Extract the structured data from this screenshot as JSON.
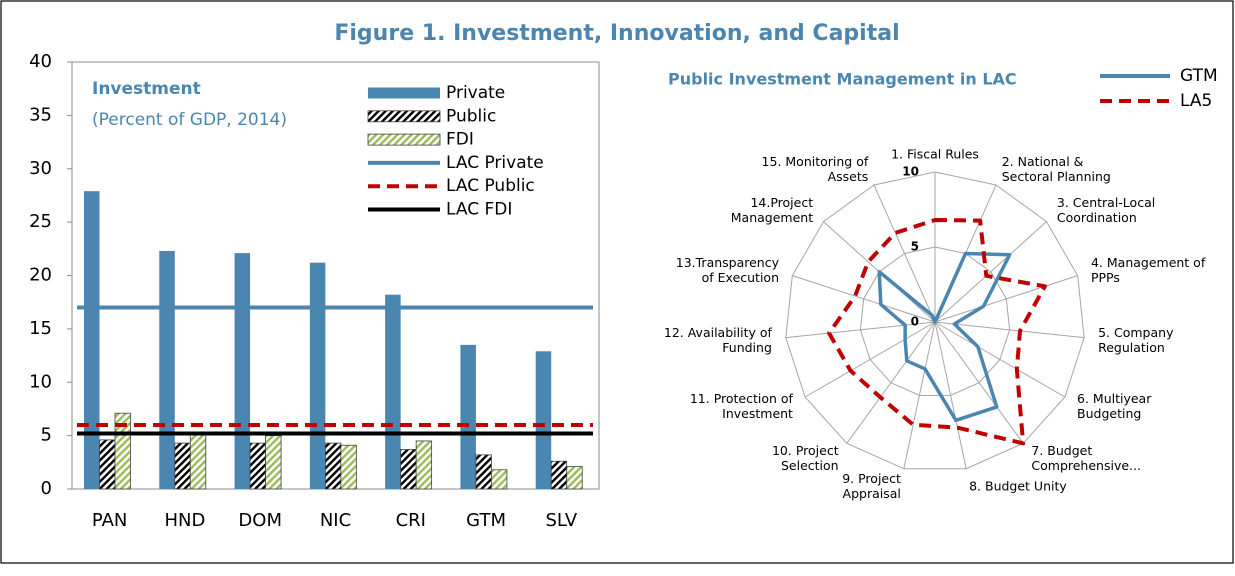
{
  "title": "Figure 1. Investment, Innovation, and Capital",
  "chart_data": [
    {
      "type": "bar",
      "title": "Investment",
      "subtitle": "(Percent of GDP, 2014)",
      "categories": [
        "PAN",
        "HND",
        "DOM",
        "NIC",
        "CRI",
        "GTM",
        "SLV"
      ],
      "series": [
        {
          "name": "Private",
          "color": "#4a86b0",
          "pattern": "solid",
          "values": [
            27.9,
            22.3,
            22.1,
            21.2,
            18.2,
            13.5,
            12.9
          ]
        },
        {
          "name": "Public",
          "color": "#000000",
          "pattern": "hatch",
          "values": [
            4.6,
            4.3,
            4.3,
            4.3,
            3.7,
            3.2,
            2.6
          ]
        },
        {
          "name": "FDI",
          "color": "#9bbb59",
          "pattern": "hatch",
          "values": [
            7.1,
            5.1,
            5.0,
            4.1,
            4.5,
            1.8,
            2.1
          ]
        }
      ],
      "reference_lines": [
        {
          "name": "LAC Private",
          "color": "#4a86b0",
          "dash": "solid",
          "value": 17.0
        },
        {
          "name": "LAC Public",
          "color": "#c00000",
          "dash": "dashed",
          "value": 6.0
        },
        {
          "name": "LAC FDI",
          "color": "#000000",
          "dash": "solid",
          "value": 5.2
        }
      ],
      "ylim": [
        0,
        40
      ],
      "yticks": [
        0,
        5,
        10,
        15,
        20,
        25,
        30,
        35,
        40
      ],
      "legend": "top-right"
    },
    {
      "type": "radar",
      "title": "Public Investment Management in LAC",
      "categories": [
        "1. Fiscal Rules",
        "2. National & Sectoral Planning",
        "3. Central-Local Coordination",
        "4. Management of PPPs",
        "5. Company Regulation",
        "6. Multiyear Budgeting",
        "7. Budget Comprehensive...",
        "8. Budget Unity",
        "9. Project Appraisal",
        "10. Project Selection",
        "11. Protection of Investment",
        "12. Availability of Funding",
        "13.Transparency of Execution",
        "14.Project Management",
        "15. Monitoring of Assets"
      ],
      "series": [
        {
          "name": "GTM",
          "color": "#4a86b0",
          "dash": "solid",
          "values": [
            0,
            5.0,
            6.7,
            3.4,
            1.3,
            3.3,
            7.0,
            6.7,
            3.2,
            3.2,
            2.3,
            2.0,
            3.8,
            5.0,
            0.5
          ]
        },
        {
          "name": "LA5",
          "color": "#c00000",
          "dash": "dashed",
          "values": [
            6.8,
            7.4,
            4.6,
            7.7,
            5.7,
            6.3,
            10,
            7.2,
            7.0,
            6.2,
            6.5,
            7.1,
            5.6,
            6.0,
            6.5
          ]
        }
      ],
      "rlim": [
        0,
        10
      ],
      "rticks": [
        0,
        5,
        10
      ],
      "legend": "top-right"
    }
  ]
}
